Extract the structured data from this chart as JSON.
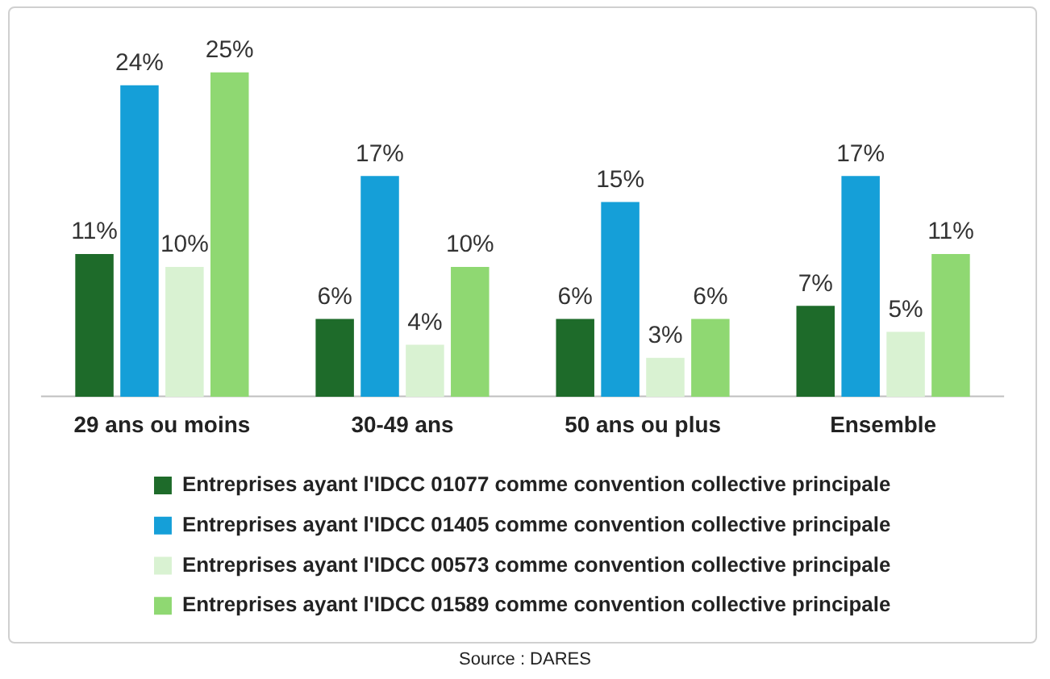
{
  "chart_data": {
    "type": "bar",
    "categories": [
      "29 ans ou moins",
      "30-49 ans",
      "50 ans ou plus",
      "Ensemble"
    ],
    "series": [
      {
        "name": "Entreprises ayant l'IDCC 01077 comme convention collective principale",
        "color": "#1e6b2a",
        "values": [
          11,
          6,
          6,
          7
        ],
        "value_labels": [
          "11%",
          "6%",
          "6%",
          "7%"
        ]
      },
      {
        "name": "Entreprises ayant l'IDCC 01405 comme convention collective principale",
        "color": "#159fd8",
        "values": [
          24,
          17,
          15,
          17
        ],
        "value_labels": [
          "24%",
          "17%",
          "15%",
          "17%"
        ]
      },
      {
        "name": "Entreprises ayant l'IDCC 00573 comme convention collective principale",
        "color": "#d9f2d2",
        "values": [
          10,
          4,
          3,
          5
        ],
        "value_labels": [
          "10%",
          "4%",
          "3%",
          "5%"
        ]
      },
      {
        "name": "Entreprises ayant l'IDCC 01589 comme convention collective principale",
        "color": "#8fd872",
        "values": [
          25,
          10,
          6,
          11
        ],
        "value_labels": [
          "25%",
          "10%",
          "6%",
          "11%"
        ]
      }
    ],
    "grid": false,
    "legend": "bottom",
    "tick_labels": "x",
    "annotations": [
      "Source : DARES"
    ]
  }
}
